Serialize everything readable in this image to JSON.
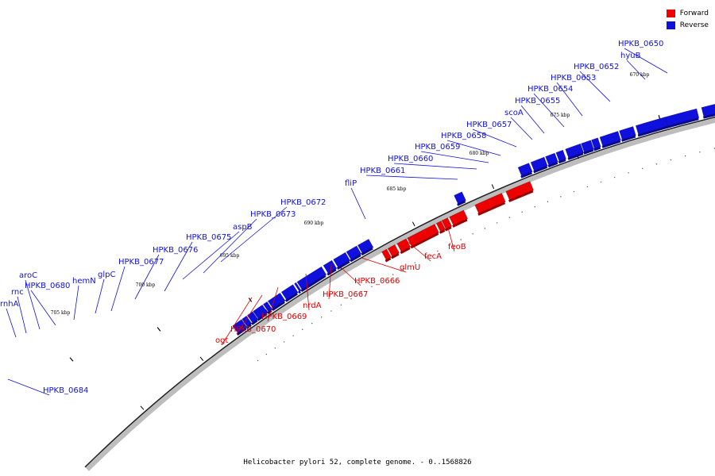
{
  "legend": {
    "forward_label": "Forward",
    "reverse_label": "Reverse",
    "forward_color": "#ee0000",
    "reverse_color": "#1010dd"
  },
  "caption": "Helicobacter pylori 52, complete genome. - 0..1568826",
  "scale_ticks": [
    "670 kbp",
    "675 kbp",
    "680 kbp",
    "685 kbp",
    "690 kbp",
    "695 kbp",
    "700 kbp",
    "705 kbp"
  ],
  "genes": [
    {
      "name": "HPKB_0650",
      "strand": "reverse"
    },
    {
      "name": "hyuB",
      "strand": "reverse"
    },
    {
      "name": "HPKB_0652",
      "strand": "reverse"
    },
    {
      "name": "HPKB_0653",
      "strand": "reverse"
    },
    {
      "name": "HPKB_0654",
      "strand": "reverse"
    },
    {
      "name": "HPKB_0655",
      "strand": "reverse"
    },
    {
      "name": "scoA",
      "strand": "reverse"
    },
    {
      "name": "HPKB_0657",
      "strand": "reverse"
    },
    {
      "name": "HPKB_0658",
      "strand": "reverse"
    },
    {
      "name": "HPKB_0659",
      "strand": "reverse"
    },
    {
      "name": "HPKB_0660",
      "strand": "reverse"
    },
    {
      "name": "HPKB_0661",
      "strand": "reverse"
    },
    {
      "name": "fliP",
      "strand": "reverse"
    },
    {
      "name": "feoB",
      "strand": "forward"
    },
    {
      "name": "fecA",
      "strand": "forward"
    },
    {
      "name": "glmU",
      "strand": "forward"
    },
    {
      "name": "HPKB_0666",
      "strand": "forward"
    },
    {
      "name": "HPKB_0667",
      "strand": "forward"
    },
    {
      "name": "nrdA",
      "strand": "forward"
    },
    {
      "name": "HPKB_0669",
      "strand": "forward"
    },
    {
      "name": "HPKB_0670",
      "strand": "forward"
    },
    {
      "name": "ogt",
      "strand": "forward"
    },
    {
      "name": "HPKB_0672",
      "strand": "reverse"
    },
    {
      "name": "HPKB_0673",
      "strand": "reverse"
    },
    {
      "name": "aspB",
      "strand": "reverse"
    },
    {
      "name": "HPKB_0675",
      "strand": "reverse"
    },
    {
      "name": "HPKB_0676",
      "strand": "reverse"
    },
    {
      "name": "HPKB_0677",
      "strand": "reverse"
    },
    {
      "name": "glpC",
      "strand": "reverse"
    },
    {
      "name": "hemN",
      "strand": "reverse"
    },
    {
      "name": "HPKB_0680",
      "strand": "reverse"
    },
    {
      "name": "aroC",
      "strand": "reverse"
    },
    {
      "name": "rnc",
      "strand": "reverse"
    },
    {
      "name": "rnhA",
      "strand": "reverse"
    },
    {
      "name": "HPKB_0684",
      "strand": "reverse"
    }
  ]
}
